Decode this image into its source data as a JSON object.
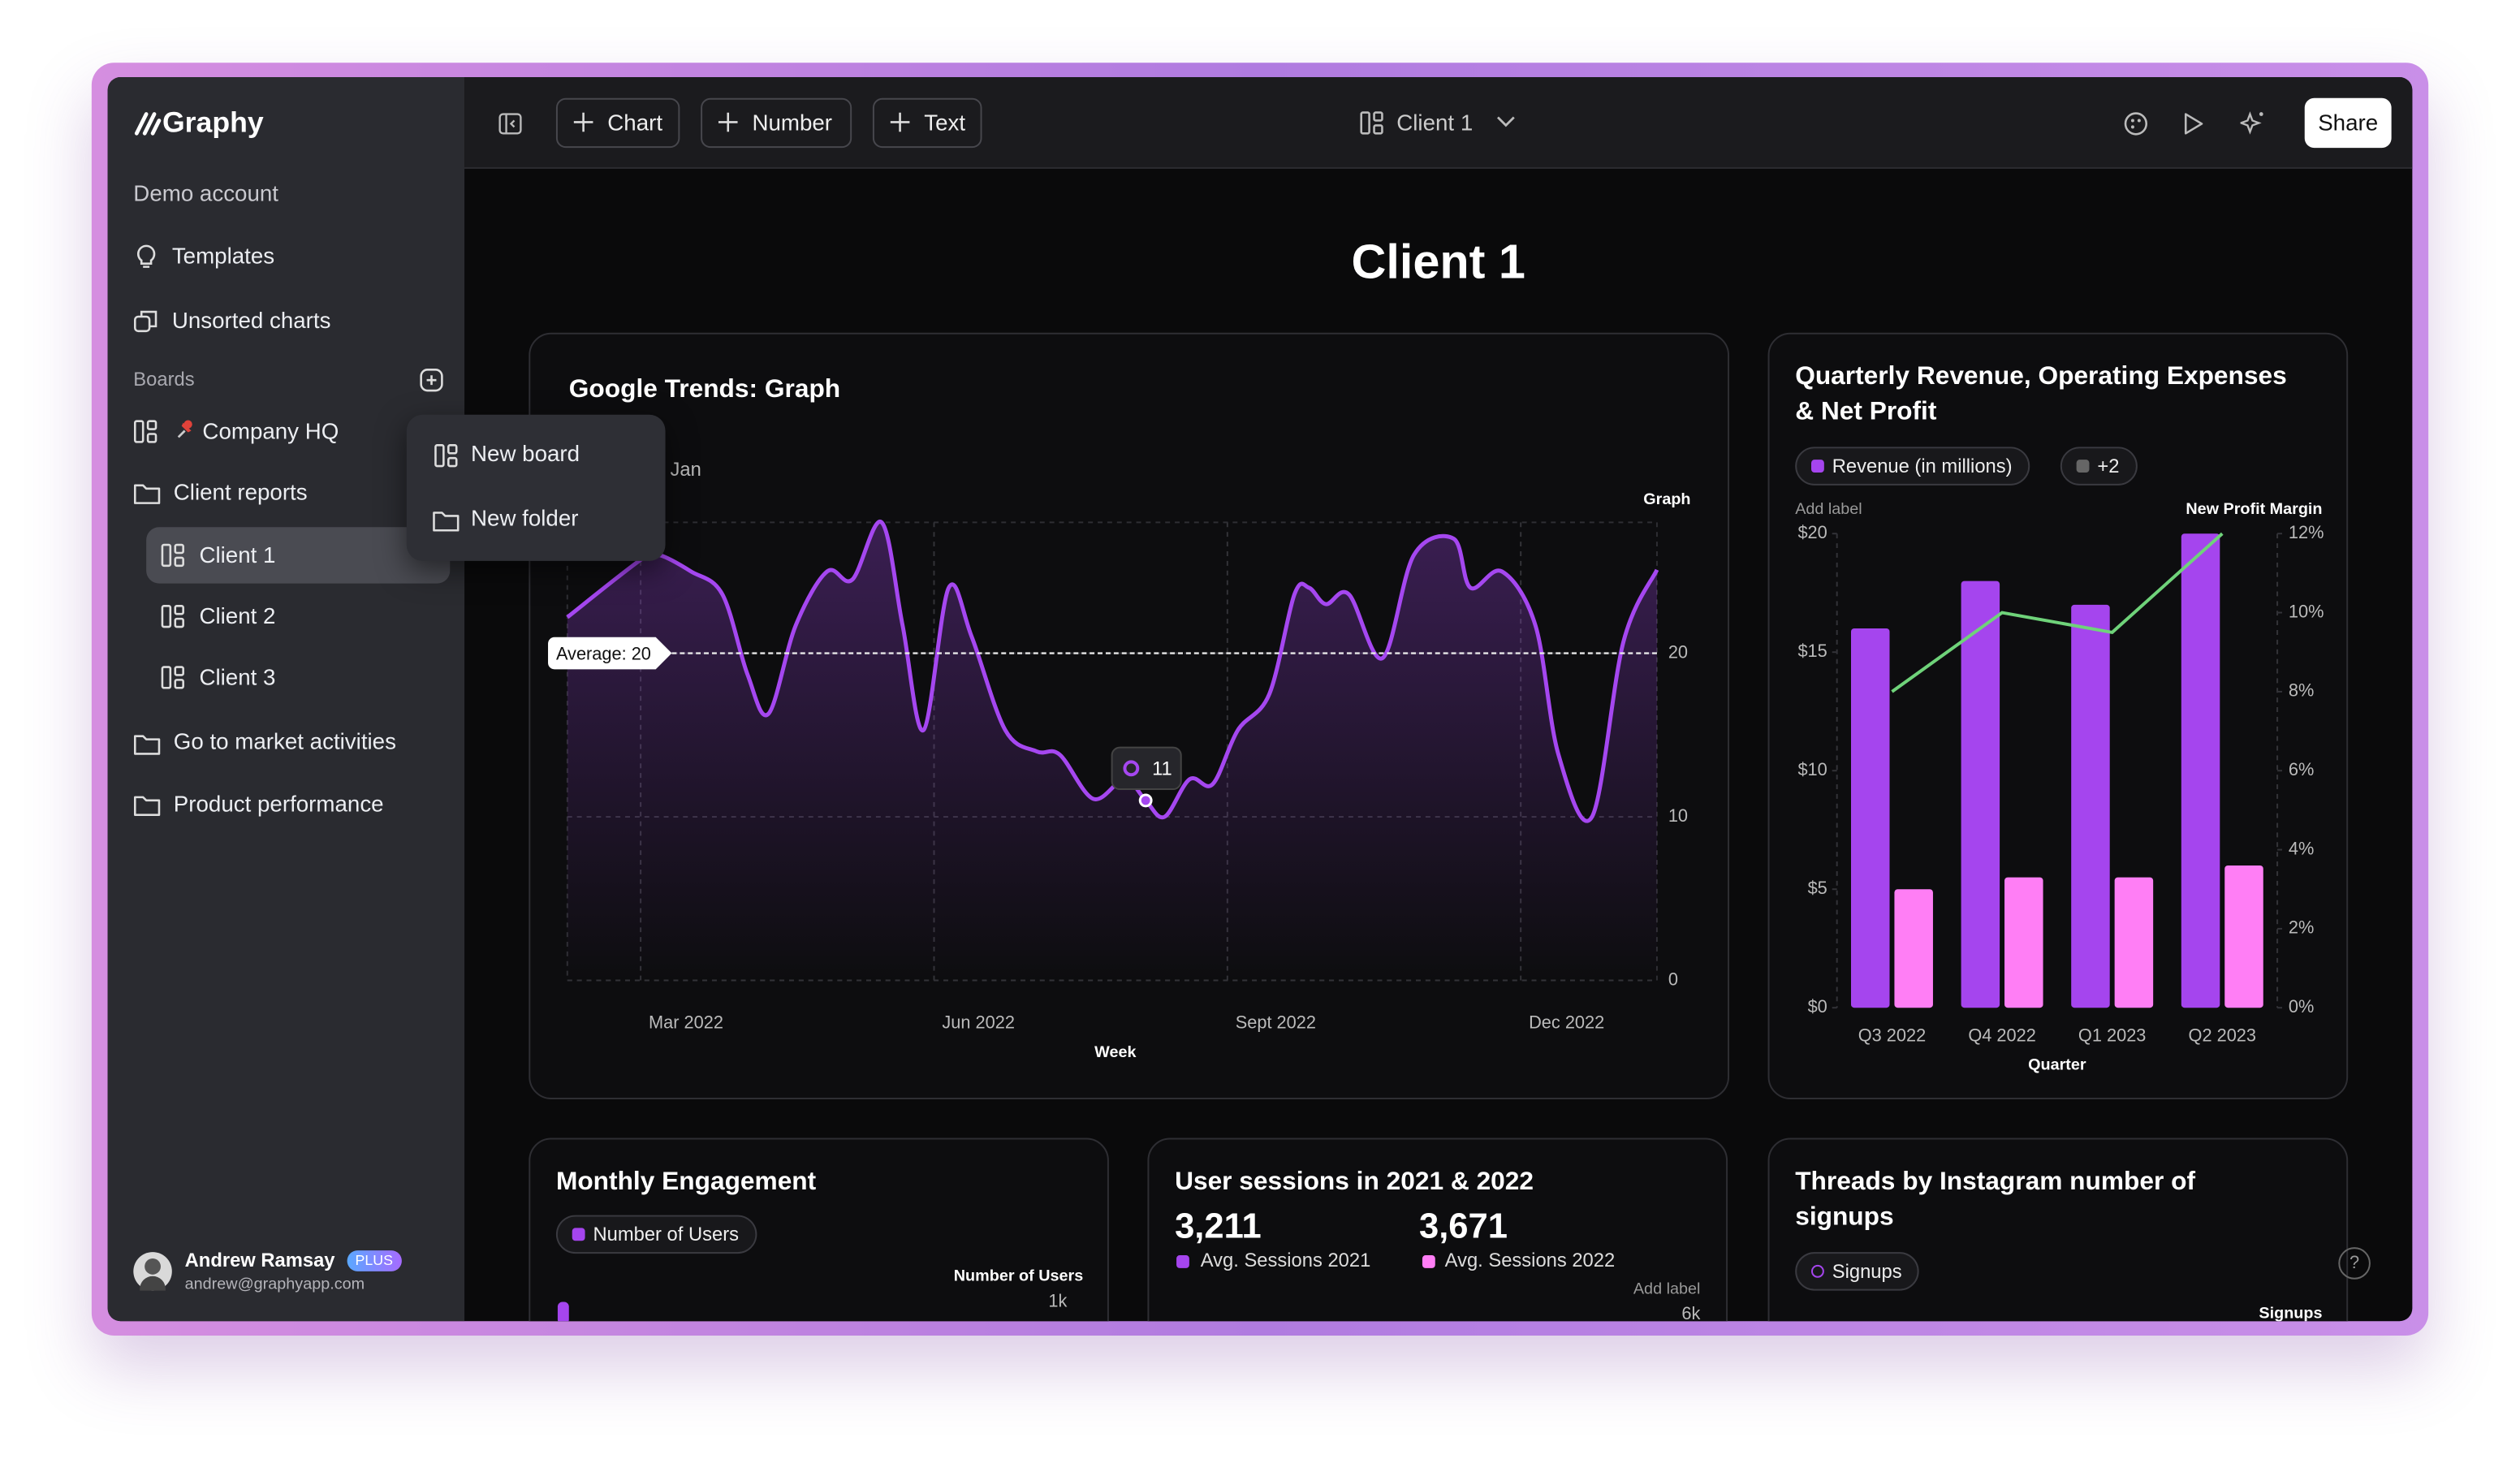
{
  "sidebar": {
    "logo": "Graphy",
    "account": "Demo account",
    "items": [
      "Templates",
      "Unsorted charts"
    ],
    "boards_heading": "Boards",
    "boards": [
      "Company HQ",
      "Client reports",
      "Client 1",
      "Client 2",
      "Client 3",
      "Go to market activities",
      "Product performance"
    ],
    "user": {
      "name": "Andrew Ramsay",
      "badge": "PLUS",
      "email": "andrew@graphyapp.com"
    }
  },
  "menu": [
    "New board",
    "New folder"
  ],
  "toolbar": {
    "buttons": [
      "Chart",
      "Number",
      "Text"
    ],
    "board": "Client 1",
    "share": "Share"
  },
  "page_title": "Client 1",
  "chart_data": [
    {
      "type": "line",
      "title": "Google Trends: Graph",
      "subtitle": "Jan",
      "ylabel": "Graph",
      "xlabel": "Week",
      "x": [
        0,
        3.6,
        4.4,
        5.9,
        7.4,
        8.6,
        9.6,
        10.9,
        12.4,
        13.6,
        15,
        16,
        17,
        18.2,
        19.3,
        20.9,
        22.4,
        23.5,
        25.1,
        26.6,
        27.6,
        28.5,
        29.7,
        30.8,
        32,
        33.5,
        34.7,
        35.4,
        36.2,
        37.3,
        38.9,
        40.4,
        42.3,
        43.1,
        44.6,
        46.2,
        47.3,
        48.9,
        50.4,
        52
      ],
      "series": [
        {
          "color": "#a547f0",
          "values": [
            22.2,
            25.8,
            26,
            25,
            23.6,
            18.7,
            16.3,
            21.7,
            25,
            24.5,
            28,
            21.7,
            15.3,
            24,
            21,
            15.3,
            14,
            13.8,
            11.1,
            12.3,
            11,
            10,
            12.3,
            12,
            15.3,
            17.5,
            23.6,
            24,
            23,
            23.6,
            19.7,
            26,
            27,
            24,
            25,
            21.7,
            13.8,
            10,
            20.7,
            25.1
          ]
        }
      ],
      "xlim": [
        0,
        52
      ],
      "ylim": [
        0,
        28
      ],
      "yticks": [
        0,
        10,
        20
      ],
      "xticks": [
        {
          "value": 3.5,
          "label": "Mar 2022"
        },
        {
          "value": 17.5,
          "label": "Jun 2022"
        },
        {
          "value": 31.5,
          "label": "Sept 2022"
        },
        {
          "value": 45.5,
          "label": "Dec 2022"
        }
      ],
      "average": {
        "value": 20,
        "label": "Average: 20"
      },
      "tooltip": {
        "x": 27.6,
        "value": 11
      },
      "grid": true
    },
    {
      "type": "bar",
      "title": "Quarterly Revenue, Operating Expenses & Net Profit",
      "legend_more": "+2",
      "ylabel": "Add label",
      "y2label": "New Profit Margin",
      "xlabel": "Quarter",
      "categories": [
        "Q3 2022",
        "Q4 2022",
        "Q1 2023",
        "Q2 2023"
      ],
      "series": [
        {
          "name": "Revenue (in millions)",
          "color": "#a545ee",
          "values": [
            16,
            18,
            17,
            20
          ]
        },
        {
          "color": "#ff7ef5",
          "values": [
            5,
            5.5,
            5.5,
            6
          ]
        },
        {
          "type": "line",
          "axis": "y2",
          "color": "#6fd37a",
          "values": [
            8,
            10,
            9.5,
            12
          ]
        }
      ],
      "ylim": [
        0,
        20
      ],
      "yticks": [
        {
          "value": 0,
          "label": "$0"
        },
        {
          "value": 5,
          "label": "$5"
        },
        {
          "value": 10,
          "label": "$10"
        },
        {
          "value": 15,
          "label": "$15"
        },
        {
          "value": 20,
          "label": "$20"
        }
      ],
      "y2lim": [
        0,
        12
      ],
      "y2ticks": [
        {
          "value": 0,
          "label": "0%"
        },
        {
          "value": 2,
          "label": "2%"
        },
        {
          "value": 4,
          "label": "4%"
        },
        {
          "value": 6,
          "label": "6%"
        },
        {
          "value": 8,
          "label": "8%"
        },
        {
          "value": 10,
          "label": "10%"
        },
        {
          "value": 12,
          "label": "12%"
        }
      ]
    }
  ],
  "cards": [
    {
      "title": "Monthly Engagement",
      "chip": "Number of Users",
      "axis_label": "Number of Users",
      "tick": "1k"
    },
    {
      "title": "User sessions in 2021 & 2022",
      "stats": [
        {
          "value": "3,211",
          "label": "Avg. Sessions 2021"
        },
        {
          "value": "3,671",
          "label": "Avg. Sessions 2022"
        }
      ],
      "axis_label": "Add label",
      "tick": "6k"
    },
    {
      "title": "Threads by Instagram number of signups",
      "chip": "Signups",
      "axis_label": "Signups"
    }
  ],
  "help": "?"
}
